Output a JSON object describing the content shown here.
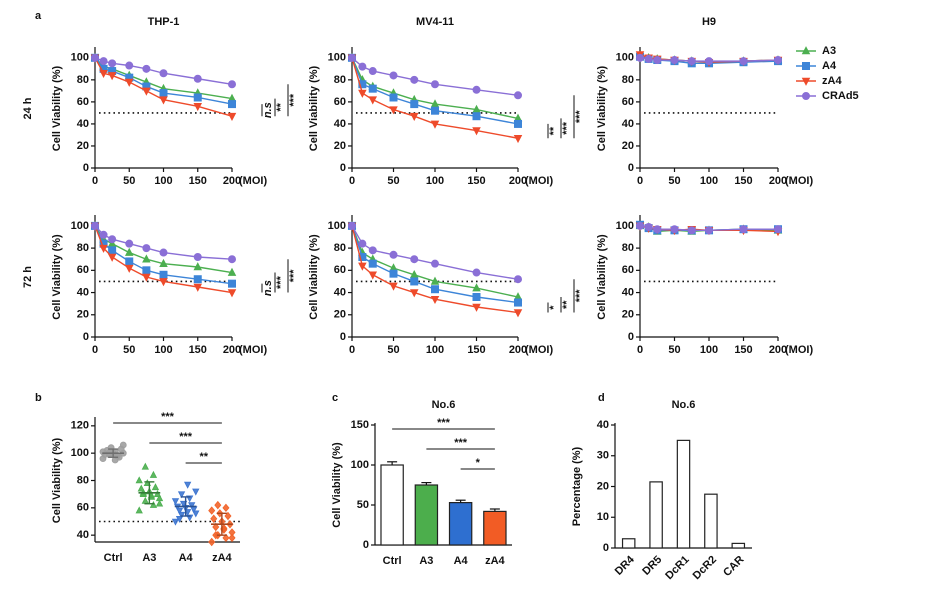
{
  "chart_data": [
    {
      "type": "line",
      "panel_label": "a",
      "title": "THP-1",
      "row_label": "24 h",
      "ylabel": "Cell Viability (%)",
      "xlabel": "(MOI)",
      "x": [
        0,
        12.5,
        25,
        50,
        75,
        100,
        150,
        200
      ],
      "xlim": [
        0,
        200
      ],
      "xticks": [
        0,
        50,
        100,
        150,
        200
      ],
      "ylim": [
        0,
        108
      ],
      "yticks": [
        0,
        20,
        40,
        60,
        80,
        100
      ],
      "reference_line": 50,
      "series": [
        {
          "color": "#4caf50",
          "marker": "triangle",
          "values": [
            100,
            92,
            90,
            84,
            78,
            72,
            68,
            63
          ]
        },
        {
          "color": "#3d85d8",
          "marker": "square",
          "values": [
            100,
            90,
            88,
            82,
            74,
            68,
            64,
            58
          ]
        },
        {
          "color": "#ee4b2b",
          "marker": "down-triangle",
          "values": [
            100,
            86,
            84,
            78,
            70,
            62,
            56,
            47
          ]
        },
        {
          "color": "#8a6fd6",
          "marker": "circle",
          "values": [
            100,
            97,
            95,
            93,
            90,
            86,
            81,
            76
          ]
        }
      ],
      "significance": [
        {
          "label": "n.s",
          "series": [
            2,
            1
          ]
        },
        {
          "label": "**",
          "series": [
            2,
            0
          ]
        },
        {
          "label": "***",
          "series": [
            2,
            3
          ]
        }
      ]
    },
    {
      "type": "line",
      "title": "MV4-11",
      "ylabel": "Cell Viability (%)",
      "xlabel": "(MOI)",
      "x": [
        0,
        12.5,
        25,
        50,
        75,
        100,
        150,
        200
      ],
      "xlim": [
        0,
        200
      ],
      "xticks": [
        0,
        50,
        100,
        150,
        200
      ],
      "ylim": [
        0,
        108
      ],
      "yticks": [
        0,
        20,
        40,
        60,
        80,
        100
      ],
      "reference_line": 50,
      "series": [
        {
          "color": "#4caf50",
          "marker": "triangle",
          "values": [
            100,
            80,
            74,
            68,
            62,
            58,
            53,
            45
          ]
        },
        {
          "color": "#3d85d8",
          "marker": "square",
          "values": [
            100,
            76,
            72,
            64,
            58,
            52,
            47,
            40
          ]
        },
        {
          "color": "#ee4b2b",
          "marker": "down-triangle",
          "values": [
            100,
            68,
            62,
            53,
            47,
            40,
            34,
            27
          ]
        },
        {
          "color": "#8a6fd6",
          "marker": "circle",
          "values": [
            100,
            92,
            88,
            84,
            80,
            76,
            71,
            66
          ]
        }
      ],
      "significance": [
        {
          "label": "**",
          "series": [
            2,
            1
          ]
        },
        {
          "label": "***",
          "series": [
            2,
            0
          ]
        },
        {
          "label": "***",
          "series": [
            2,
            3
          ]
        }
      ]
    },
    {
      "type": "line",
      "title": "H9",
      "ylabel": "Cell Viability (%)",
      "xlabel": "(MOI)",
      "legend": "right-outside",
      "x": [
        0,
        12.5,
        25,
        50,
        75,
        100,
        150,
        200
      ],
      "xlim": [
        0,
        200
      ],
      "xticks": [
        0,
        50,
        100,
        150,
        200
      ],
      "ylim": [
        0,
        108
      ],
      "yticks": [
        0,
        20,
        40,
        60,
        80,
        100
      ],
      "reference_line": 50,
      "series": [
        {
          "name": "A3",
          "color": "#4caf50",
          "marker": "triangle",
          "values": [
            102,
            100,
            99,
            98,
            97,
            96,
            97,
            98
          ]
        },
        {
          "name": "A4",
          "color": "#3d85d8",
          "marker": "square",
          "values": [
            101,
            99,
            98,
            97,
            95,
            95,
            96,
            97
          ]
        },
        {
          "name": "zA4",
          "color": "#ee4b2b",
          "marker": "down-triangle",
          "values": [
            103,
            100,
            99,
            98,
            97,
            96,
            97,
            98
          ]
        },
        {
          "name": "CRAd5",
          "color": "#8a6fd6",
          "marker": "circle",
          "values": [
            100,
            99,
            98,
            98,
            97,
            97,
            97,
            98
          ]
        }
      ]
    },
    {
      "type": "line",
      "row_label": "72 h",
      "ylabel": "Cell Viability (%)",
      "xlabel": "(MOI)",
      "x": [
        0,
        12.5,
        25,
        50,
        75,
        100,
        150,
        200
      ],
      "xlim": [
        0,
        200
      ],
      "xticks": [
        0,
        50,
        100,
        150,
        200
      ],
      "ylim": [
        0,
        108
      ],
      "yticks": [
        0,
        20,
        40,
        60,
        80,
        100
      ],
      "reference_line": 50,
      "series": [
        {
          "color": "#4caf50",
          "marker": "triangle",
          "values": [
            100,
            88,
            84,
            76,
            70,
            66,
            63,
            58
          ]
        },
        {
          "color": "#3d85d8",
          "marker": "square",
          "values": [
            100,
            84,
            78,
            68,
            60,
            56,
            52,
            48
          ]
        },
        {
          "color": "#ee4b2b",
          "marker": "down-triangle",
          "values": [
            100,
            80,
            72,
            62,
            54,
            50,
            45,
            40
          ]
        },
        {
          "color": "#8a6fd6",
          "marker": "circle",
          "values": [
            100,
            92,
            88,
            84,
            80,
            76,
            72,
            70
          ]
        }
      ],
      "significance": [
        {
          "label": "n.s",
          "series": [
            2,
            1
          ]
        },
        {
          "label": "***",
          "series": [
            2,
            0
          ]
        },
        {
          "label": "***",
          "series": [
            2,
            3
          ]
        }
      ]
    },
    {
      "type": "line",
      "ylabel": "Cell Viability (%)",
      "xlabel": "(MOI)",
      "x": [
        0,
        12.5,
        25,
        50,
        75,
        100,
        150,
        200
      ],
      "xlim": [
        0,
        200
      ],
      "xticks": [
        0,
        50,
        100,
        150,
        200
      ],
      "ylim": [
        0,
        108
      ],
      "yticks": [
        0,
        20,
        40,
        60,
        80,
        100
      ],
      "reference_line": 50,
      "series": [
        {
          "color": "#4caf50",
          "marker": "triangle",
          "values": [
            100,
            76,
            70,
            62,
            56,
            50,
            44,
            36
          ]
        },
        {
          "color": "#3d85d8",
          "marker": "square",
          "values": [
            100,
            72,
            66,
            57,
            50,
            43,
            36,
            31
          ]
        },
        {
          "color": "#ee4b2b",
          "marker": "down-triangle",
          "values": [
            100,
            64,
            56,
            46,
            40,
            34,
            27,
            22
          ]
        },
        {
          "color": "#8a6fd6",
          "marker": "circle",
          "values": [
            100,
            84,
            78,
            74,
            70,
            66,
            58,
            52
          ]
        }
      ],
      "significance": [
        {
          "label": "*",
          "series": [
            2,
            1
          ]
        },
        {
          "label": "**",
          "series": [
            2,
            0
          ]
        },
        {
          "label": "***",
          "series": [
            2,
            3
          ]
        }
      ]
    },
    {
      "type": "line",
      "ylabel": "Cell Viability (%)",
      "xlabel": "(MOI)",
      "x": [
        0,
        12.5,
        25,
        50,
        75,
        100,
        150,
        200
      ],
      "xlim": [
        0,
        200
      ],
      "xticks": [
        0,
        50,
        100,
        150,
        200
      ],
      "ylim": [
        0,
        108
      ],
      "yticks": [
        0,
        20,
        40,
        60,
        80,
        100
      ],
      "reference_line": 50,
      "series": [
        {
          "color": "#4caf50",
          "marker": "triangle",
          "values": [
            100,
            99,
            95,
            96,
            95,
            96,
            97,
            96
          ]
        },
        {
          "color": "#3d85d8",
          "marker": "square",
          "values": [
            101,
            98,
            96,
            96,
            96,
            96,
            97,
            97
          ]
        },
        {
          "color": "#ee4b2b",
          "marker": "down-triangle",
          "values": [
            100,
            98,
            97,
            96,
            97,
            96,
            96,
            95
          ]
        },
        {
          "color": "#8a6fd6",
          "marker": "circle",
          "values": [
            100,
            99,
            97,
            97,
            96,
            96,
            97,
            97
          ]
        }
      ]
    },
    {
      "type": "dot",
      "panel_label": "b",
      "ylabel": "Cell Viability (%)",
      "categories": [
        "Ctrl",
        "A3",
        "A4",
        "zA4"
      ],
      "ylim": [
        35,
        125
      ],
      "yticks": [
        40,
        60,
        80,
        100,
        120
      ],
      "reference_line": 50,
      "groups": [
        {
          "color": "#9e9e9e",
          "marker": "circle",
          "values": [
            96,
            98,
            99,
            100,
            101,
            102,
            103,
            100,
            99,
            97,
            104,
            101,
            98,
            100,
            106,
            95
          ],
          "mean": 100,
          "sd": 3
        },
        {
          "color": "#4caf50",
          "marker": "triangle",
          "values": [
            58,
            62,
            65,
            67,
            68,
            70,
            70,
            72,
            74,
            75,
            78,
            80,
            84,
            90,
            63,
            69,
            71
          ],
          "mean": 71,
          "sd": 8
        },
        {
          "color": "#3d75d0",
          "marker": "down-triangle",
          "values": [
            50,
            53,
            55,
            56,
            57,
            58,
            59,
            60,
            61,
            62,
            63,
            65,
            67,
            70,
            72,
            77,
            52
          ],
          "mean": 61,
          "sd": 7
        },
        {
          "color": "#f2642a",
          "marker": "diamond",
          "values": [
            35,
            38,
            40,
            42,
            44,
            46,
            48,
            50,
            52,
            54,
            56,
            58,
            60,
            62,
            38,
            45,
            40
          ],
          "mean": 48,
          "sd": 8
        }
      ],
      "significance": [
        {
          "label": "***",
          "between": [
            0,
            3
          ]
        },
        {
          "label": "***",
          "between": [
            1,
            3
          ]
        },
        {
          "label": "**",
          "between": [
            2,
            3
          ]
        }
      ]
    },
    {
      "type": "bar",
      "panel_label": "c",
      "title": "No.6",
      "ylabel": "Cell Viability (%)",
      "categories": [
        "Ctrl",
        "A3",
        "A4",
        "zA4"
      ],
      "values": [
        100,
        75,
        53,
        42
      ],
      "errors": [
        4,
        3,
        3,
        3
      ],
      "colors": [
        "#ffffff",
        "#4cae4c",
        "#2e6fd0",
        "#f25c25"
      ],
      "edgecolor": "#222222",
      "ylim": [
        0,
        150
      ],
      "yticks": [
        0,
        50,
        100,
        150
      ],
      "significance": [
        {
          "label": "***",
          "between": [
            0,
            3
          ]
        },
        {
          "label": "***",
          "between": [
            1,
            3
          ]
        },
        {
          "label": "*",
          "between": [
            2,
            3
          ]
        }
      ]
    },
    {
      "type": "bar",
      "panel_label": "d",
      "title": "No.6",
      "ylabel": "Percentage (%)",
      "categories": [
        "DR4",
        "DR5",
        "DcR1",
        "DcR2",
        "CAR"
      ],
      "values": [
        3,
        21.5,
        35,
        17.5,
        1.5
      ],
      "colors": [
        "#ffffff",
        "#ffffff",
        "#ffffff",
        "#ffffff",
        "#ffffff"
      ],
      "edgecolor": "#222222",
      "ylim": [
        0,
        40
      ],
      "yticks": [
        0,
        10,
        20,
        30,
        40
      ],
      "xtick_rotation": -45
    }
  ]
}
